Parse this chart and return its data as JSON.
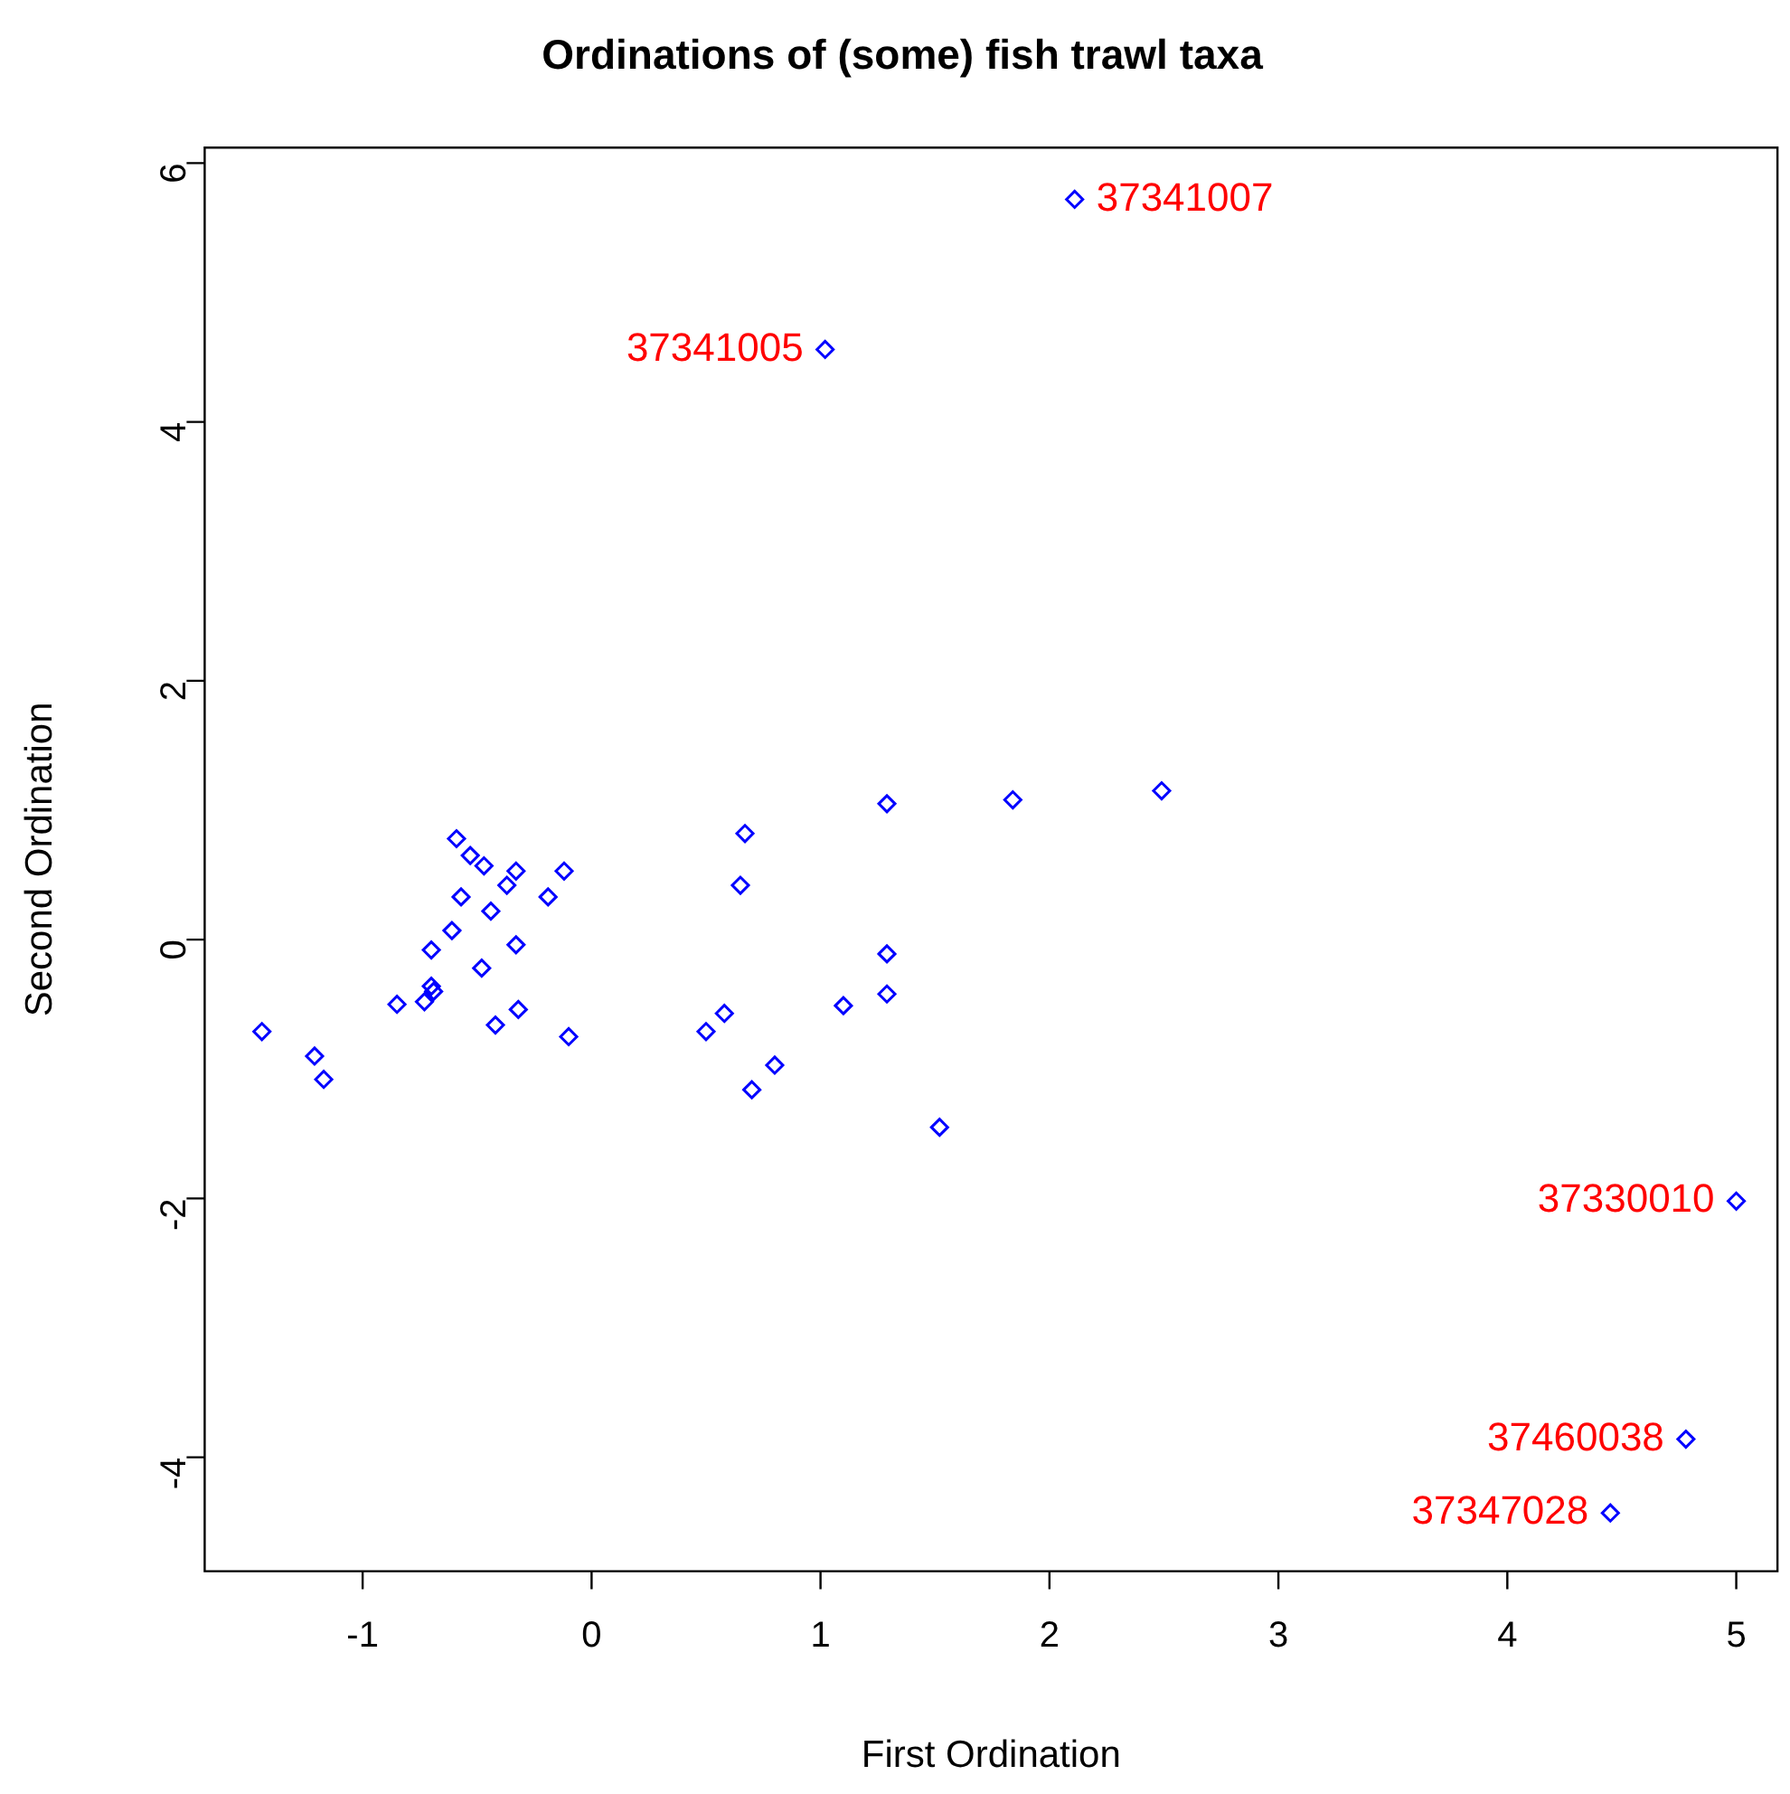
{
  "chart_data": {
    "type": "scatter",
    "title": "Ordinations of (some) fish trawl taxa",
    "xlabel": "First Ordination",
    "ylabel": "Second Ordination",
    "x": [
      -1.44,
      -1.21,
      -1.17,
      -0.59,
      -0.53,
      -0.47,
      -0.33,
      -0.12,
      -0.37,
      -0.19,
      -0.57,
      -0.44,
      -0.61,
      -0.33,
      -0.7,
      -0.48,
      -0.7,
      -0.69,
      -0.73,
      -0.85,
      -0.32,
      -0.42,
      -0.1,
      0.67,
      0.65,
      1.29,
      1.29,
      1.29,
      1.1,
      0.58,
      0.5,
      0.8,
      0.7,
      1.52,
      1.84,
      2.49,
      2.11,
      1.02,
      5.0,
      4.78,
      4.45
    ],
    "values": [
      -0.71,
      -0.9,
      -1.08,
      0.78,
      0.65,
      0.57,
      0.53,
      0.53,
      0.42,
      0.33,
      0.33,
      0.22,
      0.07,
      -0.04,
      -0.08,
      -0.22,
      -0.36,
      -0.4,
      -0.48,
      -0.5,
      -0.54,
      -0.66,
      -0.75,
      0.82,
      0.42,
      1.05,
      -0.11,
      -0.42,
      -0.51,
      -0.57,
      -0.71,
      -0.97,
      -1.16,
      -1.45,
      1.08,
      1.15,
      5.72,
      4.56,
      -2.02,
      -3.86,
      -4.43
    ],
    "color": "#0000ff",
    "marker": "diamond",
    "grid": false,
    "legend": false,
    "xlim": [
      -1.69,
      5.18
    ],
    "ylim": [
      -4.88,
      6.12
    ],
    "xticks": [
      -1,
      0,
      1,
      2,
      3,
      4,
      5
    ],
    "yticks": [
      -4,
      -2,
      0,
      2,
      4,
      6
    ],
    "annotations": [
      {
        "text": "37341007",
        "x": 2.11,
        "y": 5.72
      },
      {
        "text": "37341005",
        "x": 1.02,
        "y": 4.56
      },
      {
        "text": "37330010",
        "x": 5.0,
        "y": -2.02
      },
      {
        "text": "37460038",
        "x": 4.78,
        "y": -3.86
      },
      {
        "text": "37347028",
        "x": 4.45,
        "y": -4.43
      }
    ]
  }
}
